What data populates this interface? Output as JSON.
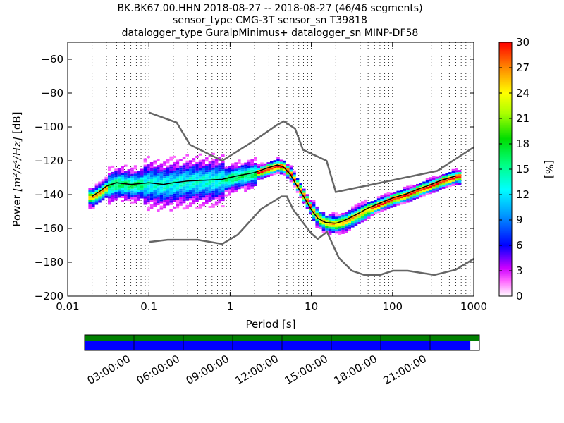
{
  "chart_data": {
    "type": "heatmap",
    "title_lines": [
      "BK.BK67.00.HHN   2018-08-27 -- 2018-08-27  (46/46 segments)",
      "sensor_type CMG-3T sensor_sn T39818",
      "datalogger_type GuralpMinimus+ datalogger_sn MINP-DF58"
    ],
    "xlabel": "Period [s]",
    "ylabel_prefix": "Power ",
    "ylabel_math": "[m²/s⁴/Hz]",
    "ylabel_suffix": " [dB]",
    "x_scale": "log",
    "xlim": [
      0.01,
      1000
    ],
    "ylim": [
      -200,
      -50
    ],
    "x_ticks": [
      {
        "value": 0.01,
        "label": "0.01"
      },
      {
        "value": 0.1,
        "label": "0.1"
      },
      {
        "value": 1,
        "label": "1"
      },
      {
        "value": 10,
        "label": "10"
      },
      {
        "value": 100,
        "label": "100"
      },
      {
        "value": 1000,
        "label": "1000"
      }
    ],
    "y_ticks": [
      {
        "value": -60,
        "label": "−60"
      },
      {
        "value": -80,
        "label": "−80"
      },
      {
        "value": -100,
        "label": "−100"
      },
      {
        "value": -120,
        "label": "−120"
      },
      {
        "value": -140,
        "label": "−140"
      },
      {
        "value": -160,
        "label": "−160"
      },
      {
        "value": -180,
        "label": "−180"
      },
      {
        "value": -200,
        "label": "−200"
      }
    ],
    "grid": "dotted vertical at log subdivisions",
    "colorbar": {
      "label": "[%]",
      "range": [
        0,
        30
      ],
      "ticks": [
        "0",
        "3",
        "6",
        "9",
        "12",
        "15",
        "18",
        "21",
        "24",
        "27",
        "30"
      ]
    },
    "noise_models": {
      "high": [
        [
          0.1,
          -91.5
        ],
        [
          0.22,
          -97.4
        ],
        [
          0.32,
          -110.5
        ],
        [
          0.8,
          -120
        ],
        [
          2.0,
          -108
        ],
        [
          3.8,
          -98.8
        ],
        [
          4.6,
          -96.7
        ],
        [
          6.3,
          -101
        ],
        [
          7.9,
          -113.5
        ],
        [
          15.4,
          -120
        ],
        [
          20,
          -138.5
        ],
        [
          354.8,
          -126
        ],
        [
          1000,
          -112
        ]
      ],
      "low": [
        [
          0.1,
          -168
        ],
        [
          0.17,
          -166.7
        ],
        [
          0.4,
          -166.7
        ],
        [
          0.8,
          -169.2
        ],
        [
          1.24,
          -163.7
        ],
        [
          2.4,
          -148.6
        ],
        [
          4.3,
          -141.1
        ],
        [
          5.0,
          -141.1
        ],
        [
          6.0,
          -149
        ],
        [
          10,
          -163
        ],
        [
          12,
          -166.2
        ],
        [
          15.6,
          -162.1
        ],
        [
          21.9,
          -177.5
        ],
        [
          31.6,
          -185
        ],
        [
          45,
          -187.5
        ],
        [
          70,
          -187.5
        ],
        [
          101,
          -185
        ],
        [
          154,
          -185
        ],
        [
          328,
          -187.5
        ],
        [
          600,
          -184.4
        ],
        [
          1000,
          -178
        ]
      ]
    },
    "series": [
      {
        "name": "mean",
        "points": [
          [
            0.02,
            -141
          ],
          [
            0.025,
            -138
          ],
          [
            0.03,
            -135
          ],
          [
            0.04,
            -133
          ],
          [
            0.06,
            -134
          ],
          [
            0.1,
            -133
          ],
          [
            0.15,
            -134
          ],
          [
            0.2,
            -133
          ],
          [
            0.3,
            -132
          ],
          [
            0.5,
            -131.5
          ],
          [
            0.8,
            -131
          ],
          [
            1.2,
            -129
          ],
          [
            2.0,
            -127
          ],
          [
            3.0,
            -124
          ],
          [
            3.8,
            -122.5
          ],
          [
            4.5,
            -123.5
          ],
          [
            5.5,
            -128
          ],
          [
            6.5,
            -134
          ],
          [
            8,
            -141
          ],
          [
            10,
            -149
          ],
          [
            12,
            -154
          ],
          [
            15,
            -156.5
          ],
          [
            20,
            -157
          ],
          [
            25,
            -155.5
          ],
          [
            35,
            -152
          ],
          [
            50,
            -148
          ],
          [
            70,
            -145
          ],
          [
            100,
            -142
          ],
          [
            150,
            -139.5
          ],
          [
            200,
            -137
          ],
          [
            300,
            -134
          ],
          [
            400,
            -131.5
          ],
          [
            600,
            -129
          ]
        ]
      }
    ],
    "time_axis": {
      "tick_labels": [
        "03:00:00",
        "06:00:00",
        "09:00:00",
        "12:00:00",
        "15:00:00",
        "18:00:00",
        "21:00:00"
      ],
      "coverage_fraction": 0.977,
      "colors": {
        "data_bar": "#008000",
        "used_bar": "#0000ff"
      }
    }
  }
}
